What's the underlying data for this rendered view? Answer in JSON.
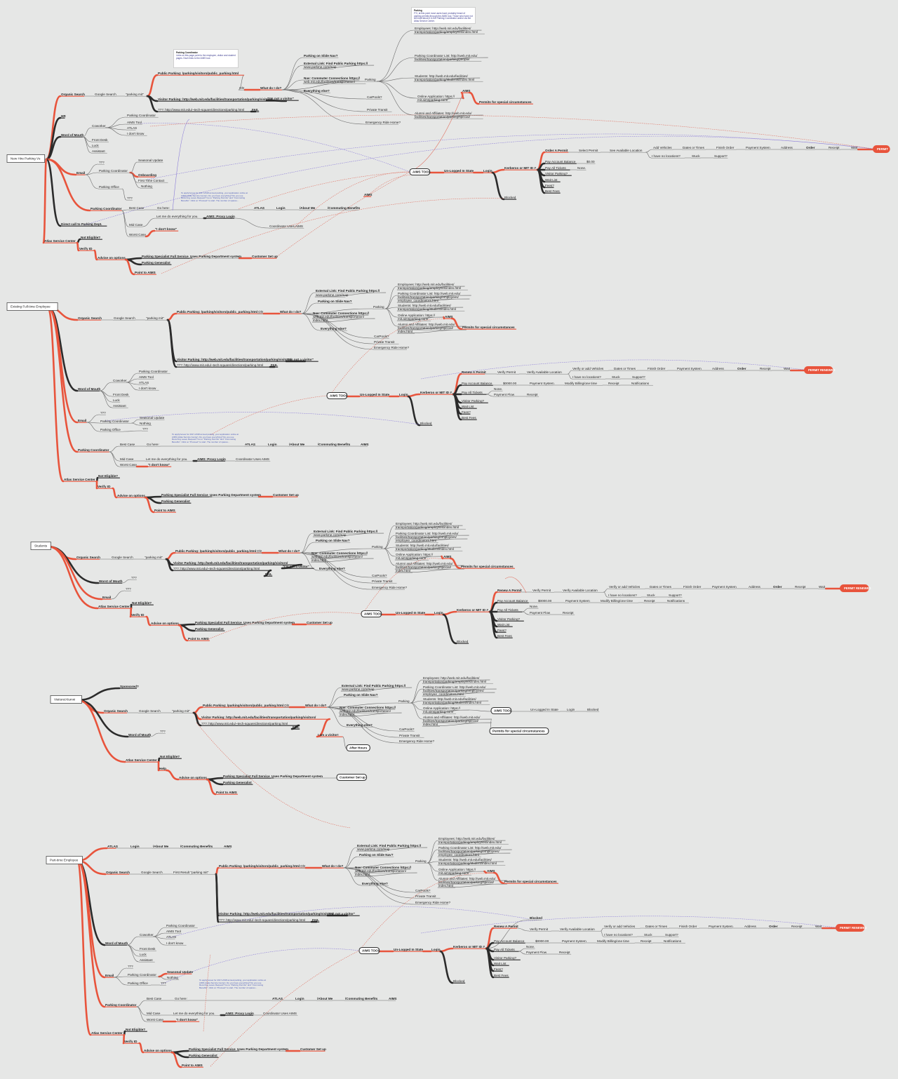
{
  "colors": {
    "accent": "#e8543c",
    "branch": "#2b2b2b",
    "link": "#8a7bd8",
    "dotted": "#e07060",
    "background": "#e6e7e6",
    "pill": "#e8543c"
  },
  "notes": [
    {
      "title": "Parking",
      "body": "FYI, at this point most users have probably heard of parking permits through the AIMS tool. Those who have not will read about it in the Parking Coordinator and/or via the Atlas Service Center."
    },
    {
      "title": "Parking Coordinator",
      "body": "Links on this page point to the employee, visitor and student pages. Each links to the AIMS tool."
    }
  ],
  "bubble_text": "To apply/renew for 2017-2018 annual parking, your application online at AIMS (Atlas Service Center). Do you have everything? Do you use Recurring Leave Request? Go to \"Parking Permits\" and \"Commuting Benefits\". Click on \"Proceed\" to start. The number of spaces..."
}
